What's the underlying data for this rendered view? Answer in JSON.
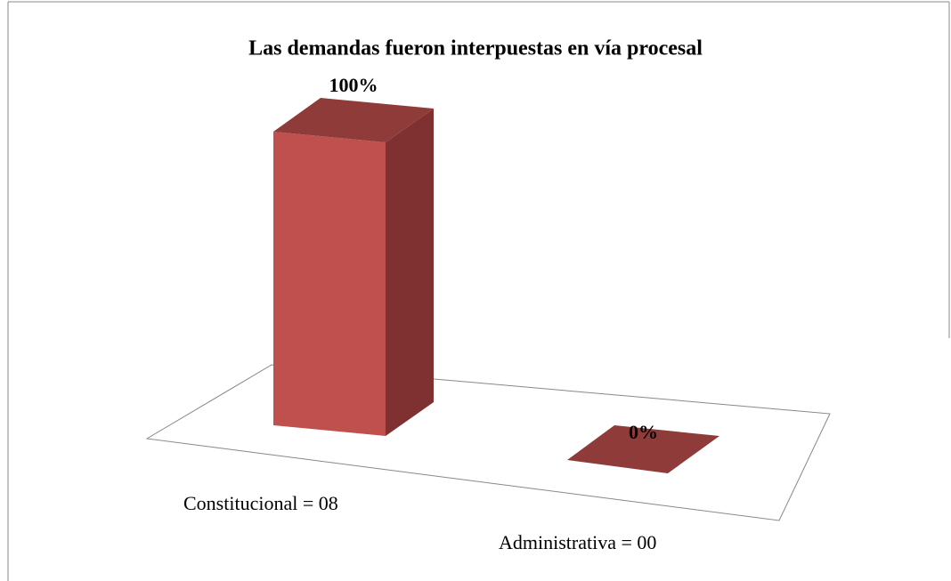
{
  "chart_data": {
    "type": "bar3d",
    "title": "Las demandas fueron interpuestas en vía procesal",
    "categories": [
      "Constitucional = 08",
      "Administrativa = 00"
    ],
    "values": [
      100,
      0
    ],
    "value_labels": [
      "100%",
      "0%"
    ],
    "color": "#c0504d"
  }
}
